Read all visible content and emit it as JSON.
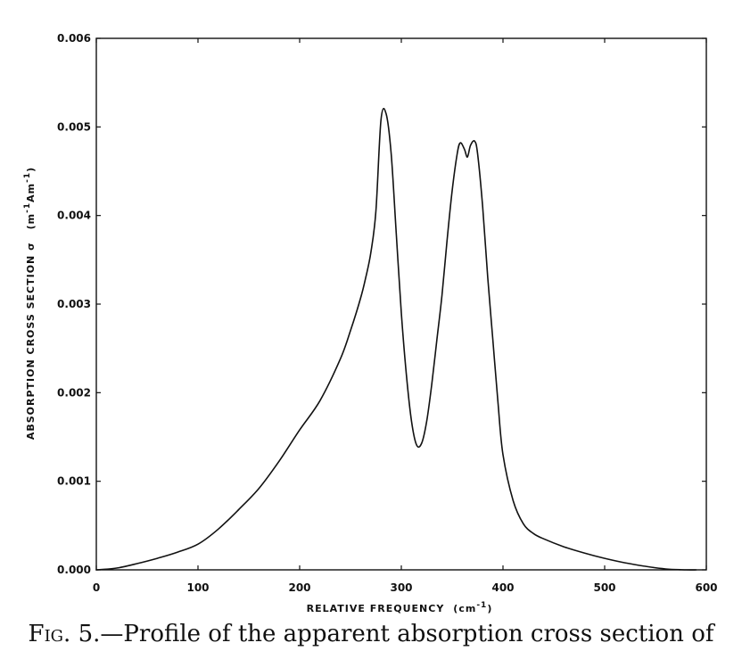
{
  "chart_data": {
    "type": "line",
    "title": "",
    "xlabel": "RELATIVE FREQUENCY",
    "xlabel_unit": "cm",
    "xlabel_unit_exp": "-1",
    "ylabel": "ABSORPTION CROSS SECTION σ",
    "ylabel_unit_pre": "m",
    "ylabel_unit_exp1": "-1",
    "ylabel_unit_mid": "Am",
    "ylabel_unit_exp2": "-1",
    "xlim": [
      0,
      600
    ],
    "ylim": [
      0,
      0.006
    ],
    "x_ticks": [
      "0",
      "100",
      "200",
      "300",
      "400",
      "500",
      "600"
    ],
    "y_ticks": [
      "0.000",
      "0.001",
      "0.002",
      "0.003",
      "0.004",
      "0.005",
      "0.006"
    ],
    "grid": false,
    "series": [
      {
        "x": [
          0,
          20,
          40,
          60,
          80,
          100,
          120,
          140,
          160,
          180,
          200,
          220,
          240,
          250,
          260,
          265,
          270,
          275,
          280,
          285,
          290,
          295,
          300,
          305,
          310,
          315,
          320,
          325,
          330,
          335,
          340,
          345,
          350,
          355,
          358,
          362,
          365,
          368,
          372,
          375,
          380,
          385,
          390,
          395,
          400,
          410,
          420,
          430,
          440,
          460,
          480,
          500,
          520,
          540,
          560,
          580,
          590
        ],
        "y": [
          0.0,
          2e-05,
          7e-05,
          0.00013,
          0.0002,
          0.00029,
          0.00046,
          0.00068,
          0.00092,
          0.00123,
          0.00158,
          0.00191,
          0.00238,
          0.0027,
          0.00307,
          0.0033,
          0.00358,
          0.00405,
          0.00508,
          0.00515,
          0.0047,
          0.0038,
          0.0029,
          0.0022,
          0.00168,
          0.00141,
          0.00143,
          0.00168,
          0.0021,
          0.0026,
          0.0031,
          0.00372,
          0.00428,
          0.0047,
          0.00482,
          0.00475,
          0.00466,
          0.00479,
          0.00484,
          0.0047,
          0.0041,
          0.0033,
          0.0026,
          0.0019,
          0.0013,
          0.00078,
          0.00052,
          0.00041,
          0.00035,
          0.00026,
          0.00019,
          0.00013,
          8e-05,
          4e-05,
          1e-05,
          0.0,
          0.0
        ]
      }
    ]
  },
  "caption": {
    "fig": "Fig. 5.",
    "text": "—Profile of the apparent absorption cross section of"
  }
}
